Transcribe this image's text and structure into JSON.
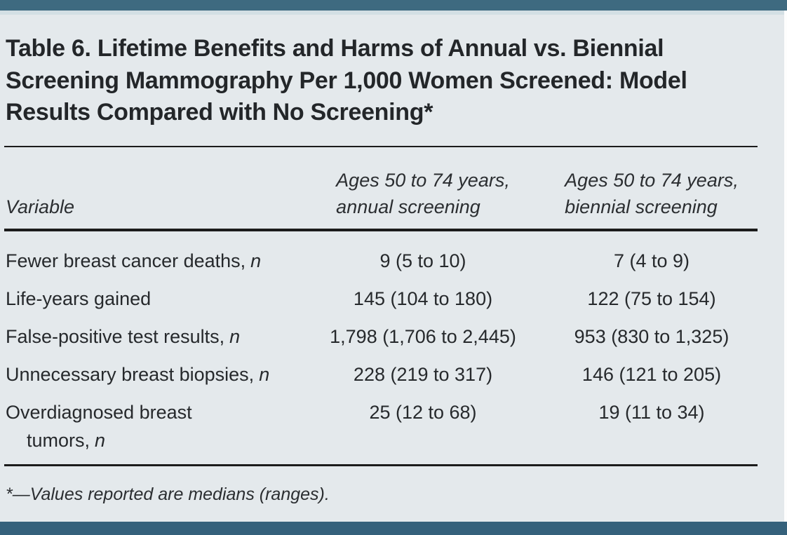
{
  "colors": {
    "accent_bar_top": "#3E6A80",
    "accent_bar_bottom": "#35617B",
    "panel_background": "#E4E9EC",
    "rule_color": "#1B1B1B",
    "text_color": "#26292C"
  },
  "table": {
    "title": "Table 6. Lifetime Benefits and Harms of Annual vs. Biennial Screening Mammography Per 1,000 Women Screened: Model Results Compared with No Screening*",
    "header": {
      "variable": "Variable",
      "col_annual_line1": "Ages 50 to 74 years,",
      "col_annual_line2": "annual screening",
      "col_biennial_line1": "Ages 50 to 74 years,",
      "col_biennial_line2": "biennial screening"
    },
    "rows": [
      {
        "label": "Fewer breast cancer deaths,",
        "label_italic": "n",
        "annual": "9 (5 to 10)",
        "biennial": "7 (4 to 9)"
      },
      {
        "label": "Life-years gained",
        "label_italic": "",
        "annual": "145 (104 to 180)",
        "biennial": "122 (75 to 154)"
      },
      {
        "label": "False-positive test results,",
        "label_italic": "n",
        "annual": "1,798 (1,706 to 2,445)",
        "biennial": "953 (830 to 1,325)"
      },
      {
        "label": "Unnecessary breast biopsies,",
        "label_italic": "n",
        "annual": "228 (219 to 317)",
        "biennial": "146 (121 to 205)"
      },
      {
        "label": "Overdiagnosed breast",
        "label_line2": "tumors,",
        "label_italic": "n",
        "annual": "25 (12 to 68)",
        "biennial": "19 (11 to 34)"
      }
    ],
    "footnote": "*—Values reported are medians (ranges)."
  }
}
